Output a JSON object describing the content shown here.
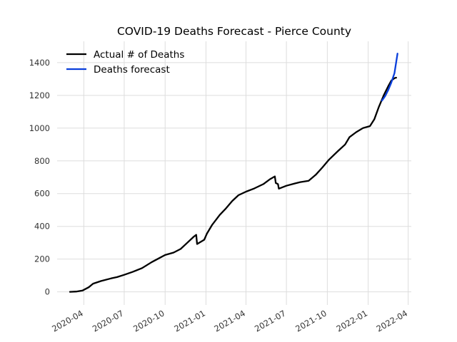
{
  "chart_data": {
    "type": "line",
    "title": "COVID-19 Deaths Forecast - Pierce County",
    "xlabel": "",
    "ylabel": "",
    "x_range": [
      "2020-02-01",
      "2022-04-08"
    ],
    "ylim": [
      -80,
      1530
    ],
    "yticks": [
      0,
      200,
      400,
      600,
      800,
      1000,
      1200,
      1400
    ],
    "xticks": [
      "2020-04-01",
      "2020-07-01",
      "2020-10-01",
      "2021-01-01",
      "2021-04-01",
      "2021-07-01",
      "2021-10-01",
      "2022-01-01",
      "2022-04-01"
    ],
    "xtick_labels": [
      "2020-04",
      "2020-07",
      "2020-10",
      "2021-01",
      "2021-04",
      "2021-07",
      "2021-10",
      "2022-01",
      "2022-04"
    ],
    "grid": true,
    "legend_position": "top-left",
    "series": [
      {
        "name": "Actual # of Deaths",
        "color": "#000000",
        "points": [
          [
            "2020-03-01",
            0
          ],
          [
            "2020-03-15",
            2
          ],
          [
            "2020-03-29",
            8
          ],
          [
            "2020-04-12",
            28
          ],
          [
            "2020-04-22",
            50
          ],
          [
            "2020-05-10",
            66
          ],
          [
            "2020-06-01",
            82
          ],
          [
            "2020-06-15",
            90
          ],
          [
            "2020-07-01",
            104
          ],
          [
            "2020-07-20",
            122
          ],
          [
            "2020-08-10",
            145
          ],
          [
            "2020-09-01",
            182
          ],
          [
            "2020-09-15",
            202
          ],
          [
            "2020-10-01",
            225
          ],
          [
            "2020-10-20",
            240
          ],
          [
            "2020-11-05",
            262
          ],
          [
            "2020-11-20",
            300
          ],
          [
            "2020-12-05",
            338
          ],
          [
            "2020-12-10",
            348
          ],
          [
            "2020-12-12",
            292
          ],
          [
            "2020-12-28",
            318
          ],
          [
            "2021-01-03",
            355
          ],
          [
            "2021-01-15",
            410
          ],
          [
            "2021-02-01",
            470
          ],
          [
            "2021-02-15",
            510
          ],
          [
            "2021-03-01",
            555
          ],
          [
            "2021-03-15",
            590
          ],
          [
            "2021-04-01",
            612
          ],
          [
            "2021-04-20",
            632
          ],
          [
            "2021-05-10",
            658
          ],
          [
            "2021-05-25",
            688
          ],
          [
            "2021-06-05",
            705
          ],
          [
            "2021-06-07",
            665
          ],
          [
            "2021-06-12",
            658
          ],
          [
            "2021-06-14",
            630
          ],
          [
            "2021-07-01",
            648
          ],
          [
            "2021-07-20",
            662
          ],
          [
            "2021-08-01",
            670
          ],
          [
            "2021-08-20",
            678
          ],
          [
            "2021-09-05",
            715
          ],
          [
            "2021-09-20",
            760
          ],
          [
            "2021-10-05",
            808
          ],
          [
            "2021-10-25",
            860
          ],
          [
            "2021-11-10",
            900
          ],
          [
            "2021-11-20",
            945
          ],
          [
            "2021-12-05",
            975
          ],
          [
            "2021-12-20",
            1000
          ],
          [
            "2022-01-05",
            1012
          ],
          [
            "2022-01-15",
            1055
          ],
          [
            "2022-01-25",
            1130
          ],
          [
            "2022-02-05",
            1200
          ],
          [
            "2022-02-15",
            1255
          ],
          [
            "2022-02-22",
            1290
          ],
          [
            "2022-03-01",
            1305
          ],
          [
            "2022-03-05",
            1308
          ]
        ]
      },
      {
        "name": "Deaths forecast",
        "color": "#0a3fdc",
        "points": [
          [
            "2022-02-01",
            1168
          ],
          [
            "2022-02-08",
            1195
          ],
          [
            "2022-02-15",
            1232
          ],
          [
            "2022-02-22",
            1278
          ],
          [
            "2022-03-01",
            1335
          ],
          [
            "2022-03-08",
            1455
          ]
        ]
      }
    ]
  }
}
